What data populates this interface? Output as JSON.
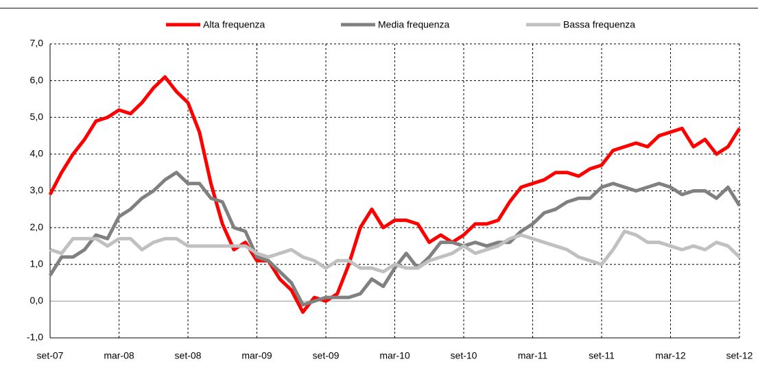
{
  "chart_data": {
    "type": "line",
    "categories": [
      "set-07",
      null,
      null,
      null,
      null,
      null,
      "mar-08",
      null,
      null,
      null,
      null,
      null,
      "set-08",
      null,
      null,
      null,
      null,
      null,
      "mar-09",
      null,
      null,
      null,
      null,
      null,
      "set-09",
      null,
      null,
      null,
      null,
      null,
      "mar-10",
      null,
      null,
      null,
      null,
      null,
      "set-10",
      null,
      null,
      null,
      null,
      null,
      "mar-11",
      null,
      null,
      null,
      null,
      null,
      "set-11",
      null,
      null,
      null,
      null,
      null,
      "mar-12",
      null,
      null,
      null,
      null,
      null,
      "set-12"
    ],
    "series": [
      {
        "name": "Alta frequenza",
        "color": "#ff0000",
        "values": [
          2.9,
          3.5,
          4.0,
          4.4,
          4.9,
          5.0,
          5.2,
          5.1,
          5.4,
          5.8,
          6.1,
          5.7,
          5.4,
          4.6,
          3.2,
          2.1,
          1.4,
          1.6,
          1.1,
          1.1,
          0.6,
          0.3,
          -0.3,
          0.1,
          0.0,
          0.2,
          1.0,
          2.0,
          2.5,
          2.0,
          2.2,
          2.2,
          2.1,
          1.6,
          1.8,
          1.6,
          1.8,
          2.1,
          2.1,
          2.2,
          2.7,
          3.1,
          3.2,
          3.3,
          3.5,
          3.5,
          3.4,
          3.6,
          3.7,
          4.1,
          4.2,
          4.3,
          4.2,
          4.5,
          4.6,
          4.7,
          4.2,
          4.4,
          4.0,
          4.2,
          4.7
        ]
      },
      {
        "name": "Media frequenza",
        "color": "#808080",
        "values": [
          0.7,
          1.2,
          1.2,
          1.4,
          1.8,
          1.7,
          2.3,
          2.5,
          2.8,
          3.0,
          3.3,
          3.5,
          3.2,
          3.2,
          2.8,
          2.7,
          2.0,
          1.9,
          1.2,
          1.1,
          0.8,
          0.5,
          -0.1,
          0.0,
          0.1,
          0.1,
          0.1,
          0.2,
          0.6,
          0.4,
          0.9,
          1.3,
          0.9,
          1.2,
          1.6,
          1.6,
          1.5,
          1.6,
          1.5,
          1.6,
          1.6,
          1.9,
          2.1,
          2.4,
          2.5,
          2.7,
          2.8,
          2.8,
          3.1,
          3.2,
          3.1,
          3.0,
          3.1,
          3.2,
          3.1,
          2.9,
          3.0,
          3.0,
          2.8,
          3.1,
          2.6
        ]
      },
      {
        "name": "Bassa frequenza",
        "color": "#c0c0c0",
        "values": [
          1.4,
          1.3,
          1.7,
          1.7,
          1.7,
          1.5,
          1.7,
          1.7,
          1.4,
          1.6,
          1.7,
          1.7,
          1.5,
          1.5,
          1.5,
          1.5,
          1.5,
          1.5,
          1.3,
          1.2,
          1.3,
          1.4,
          1.2,
          1.1,
          0.9,
          1.1,
          1.1,
          0.9,
          0.9,
          0.8,
          1.0,
          0.9,
          0.9,
          1.1,
          1.2,
          1.3,
          1.5,
          1.3,
          1.4,
          1.5,
          1.7,
          1.8,
          1.7,
          1.6,
          1.5,
          1.4,
          1.2,
          1.1,
          1.0,
          1.4,
          1.9,
          1.8,
          1.6,
          1.6,
          1.5,
          1.4,
          1.5,
          1.4,
          1.6,
          1.5,
          1.2
        ]
      }
    ],
    "ylim": [
      -1,
      7
    ],
    "yticks": [
      {
        "value": -1,
        "label": "-1,0"
      },
      {
        "value": 0,
        "label": "0,0"
      },
      {
        "value": 1,
        "label": "1,0"
      },
      {
        "value": 2,
        "label": "2,0"
      },
      {
        "value": 3,
        "label": "3,0"
      },
      {
        "value": 4,
        "label": "4,0"
      },
      {
        "value": 5,
        "label": "5,0"
      },
      {
        "value": 6,
        "label": "6,0"
      },
      {
        "value": 7,
        "label": "7,0"
      }
    ],
    "grid": true,
    "legend": "top"
  }
}
